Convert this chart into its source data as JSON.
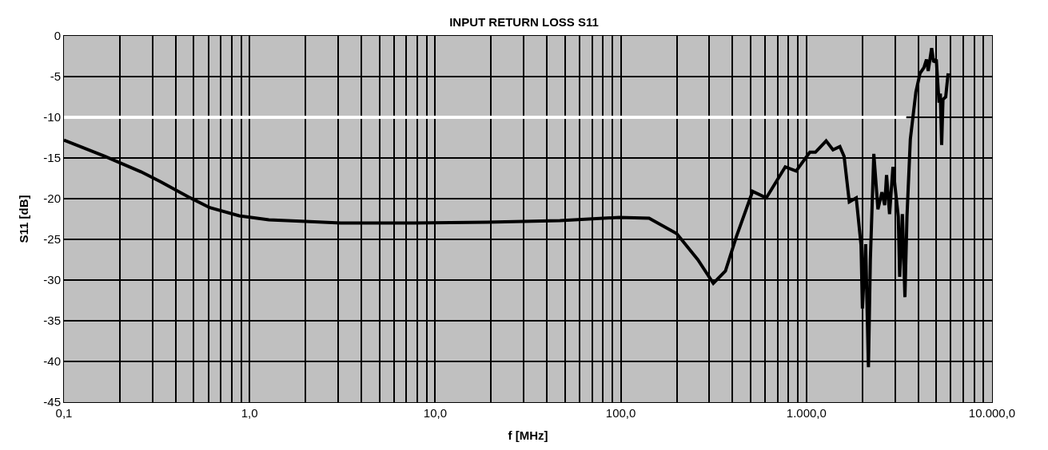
{
  "chart_data": {
    "type": "line",
    "title": "INPUT RETURN LOSS S11",
    "xlabel": "f [MHz]",
    "ylabel": "S11 [dB]",
    "log": "x",
    "grid": true,
    "marker": "none",
    "line_style": "solid",
    "xlim": [
      0.1,
      10000
    ],
    "xticks": [
      {
        "value": 0.1,
        "label": "0,1"
      },
      {
        "value": 1,
        "label": "1,0"
      },
      {
        "value": 10,
        "label": "10,0"
      },
      {
        "value": 100,
        "label": "100,0"
      },
      {
        "value": 1000,
        "label": "1.000,0"
      },
      {
        "value": 10000,
        "label": "10.000,0"
      }
    ],
    "ylim": [
      -45,
      0
    ],
    "yticks": [
      0,
      -5,
      -10,
      -15,
      -20,
      -25,
      -30,
      -35,
      -40,
      -45
    ],
    "series": [
      {
        "color": "#ffffff",
        "x": [
          0.1,
          3450
        ],
        "values": [
          -10,
          -10
        ]
      },
      {
        "color": "#000000",
        "x": [
          0.1,
          0.166,
          0.26,
          0.33,
          0.47,
          0.61,
          0.88,
          1.27,
          2.0,
          3.1,
          7.7,
          19,
          47,
          98,
          142,
          200,
          260,
          315,
          366,
          419,
          513,
          608,
          769,
          880,
          1043,
          1118,
          1277,
          1390,
          1514,
          1596,
          1702,
          1855,
          1969,
          2003,
          2085,
          2158,
          2210,
          2307,
          2428,
          2551,
          2641,
          2702,
          2805,
          2925,
          3125,
          3180,
          3288,
          3394,
          3481,
          3629,
          3888,
          4093,
          4293,
          4435,
          4530,
          4728,
          4842,
          5009,
          5180,
          5267,
          5353,
          5442,
          5628,
          5800
        ],
        "values": [
          -12.8,
          -14.8,
          -16.7,
          -17.9,
          -19.8,
          -21.1,
          -22.1,
          -22.6,
          -22.8,
          -23.0,
          -23.0,
          -22.9,
          -22.7,
          -22.3,
          -22.4,
          -24.3,
          -27.5,
          -30.4,
          -28.9,
          -24.7,
          -19.1,
          -19.9,
          -16.1,
          -16.6,
          -14.3,
          -14.3,
          -12.9,
          -14.0,
          -13.6,
          -14.8,
          -20.4,
          -19.9,
          -25.7,
          -33.5,
          -25.6,
          -40.7,
          -27.5,
          -14.5,
          -21.3,
          -19.2,
          -20.8,
          -17.1,
          -21.9,
          -16.1,
          -22.2,
          -29.6,
          -21.9,
          -32.1,
          -22.2,
          -12.7,
          -6.9,
          -4.6,
          -3.9,
          -2.9,
          -4.3,
          -1.5,
          -3.2,
          -2.9,
          -8.2,
          -7.1,
          -13.4,
          -7.8,
          -7.5,
          -4.6
        ]
      }
    ]
  }
}
